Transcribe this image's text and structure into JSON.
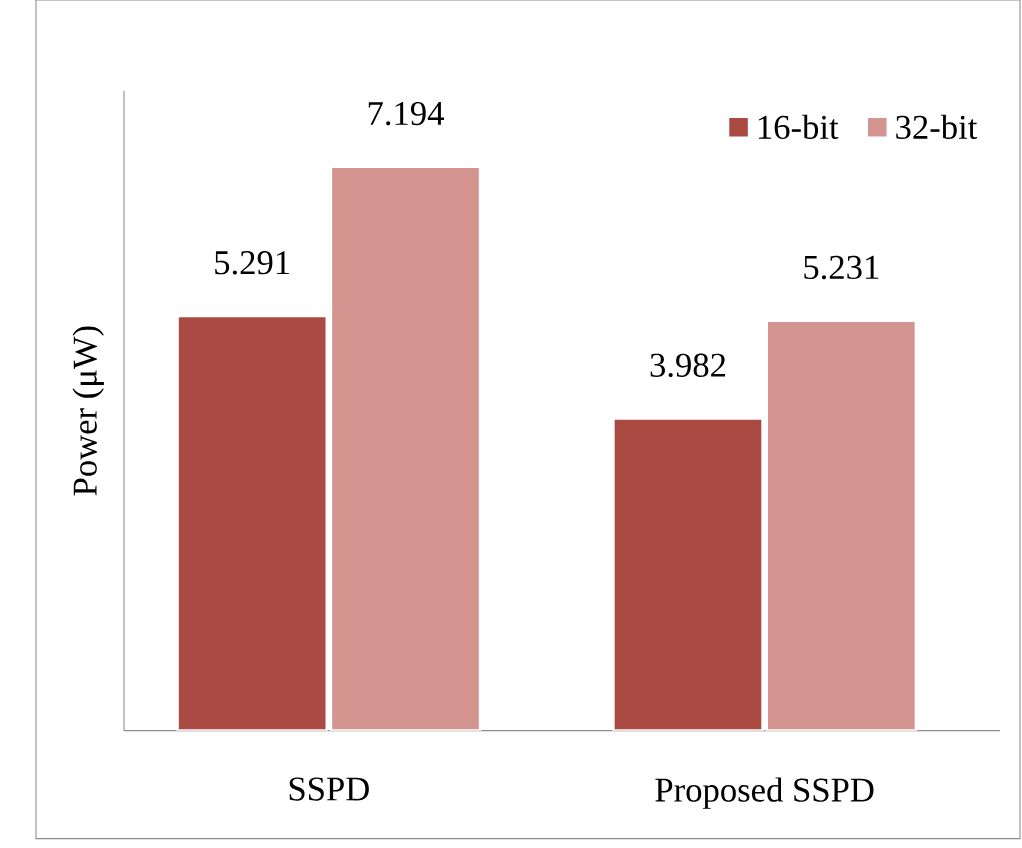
{
  "chart_data": {
    "type": "bar",
    "ylabel": "Power (μW)",
    "categories": [
      "SSPD",
      "Proposed SSPD"
    ],
    "series": [
      {
        "name": "16-bit",
        "color": "#ab4a43",
        "values": [
          5.291,
          3.982
        ]
      },
      {
        "name": "32-bit",
        "color": "#d49490",
        "values": [
          7.194,
          5.231
        ]
      }
    ],
    "data_labels": true,
    "legend": "top right",
    "tick_labels": "x"
  }
}
